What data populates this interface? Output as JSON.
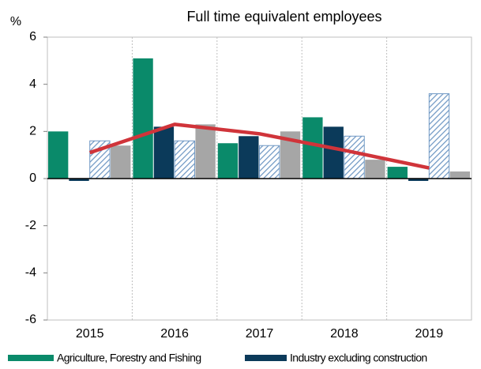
{
  "chart_data": {
    "type": "bar",
    "title": "Full time equivalent employees",
    "y_label": "%",
    "categories": [
      "2015",
      "2016",
      "2017",
      "2018",
      "2019"
    ],
    "series": [
      {
        "name": "Agriculture,  Forestry and Fishing",
        "color": "#0a8a6a",
        "values": [
          2.0,
          5.1,
          1.5,
          2.6,
          0.5
        ]
      },
      {
        "name": "Industry excluding construction",
        "color": "#0b3a5a",
        "values": [
          -0.1,
          2.2,
          1.8,
          2.2,
          -0.1
        ]
      },
      {
        "color": "#6f98c4",
        "pattern": "hatch",
        "values": [
          1.6,
          1.6,
          1.4,
          1.8,
          3.6
        ]
      },
      {
        "color": "#a6a6a6",
        "values": [
          1.4,
          2.3,
          2.0,
          0.8,
          0.3
        ]
      },
      {
        "type": "line",
        "color": "#d0343a",
        "values": [
          1.1,
          2.3,
          1.9,
          1.2,
          0.45
        ]
      }
    ],
    "ylim": [
      -6,
      6
    ],
    "yticks": [
      -6,
      -4,
      -2,
      0,
      2,
      4,
      6
    ],
    "grid": "vertical"
  }
}
